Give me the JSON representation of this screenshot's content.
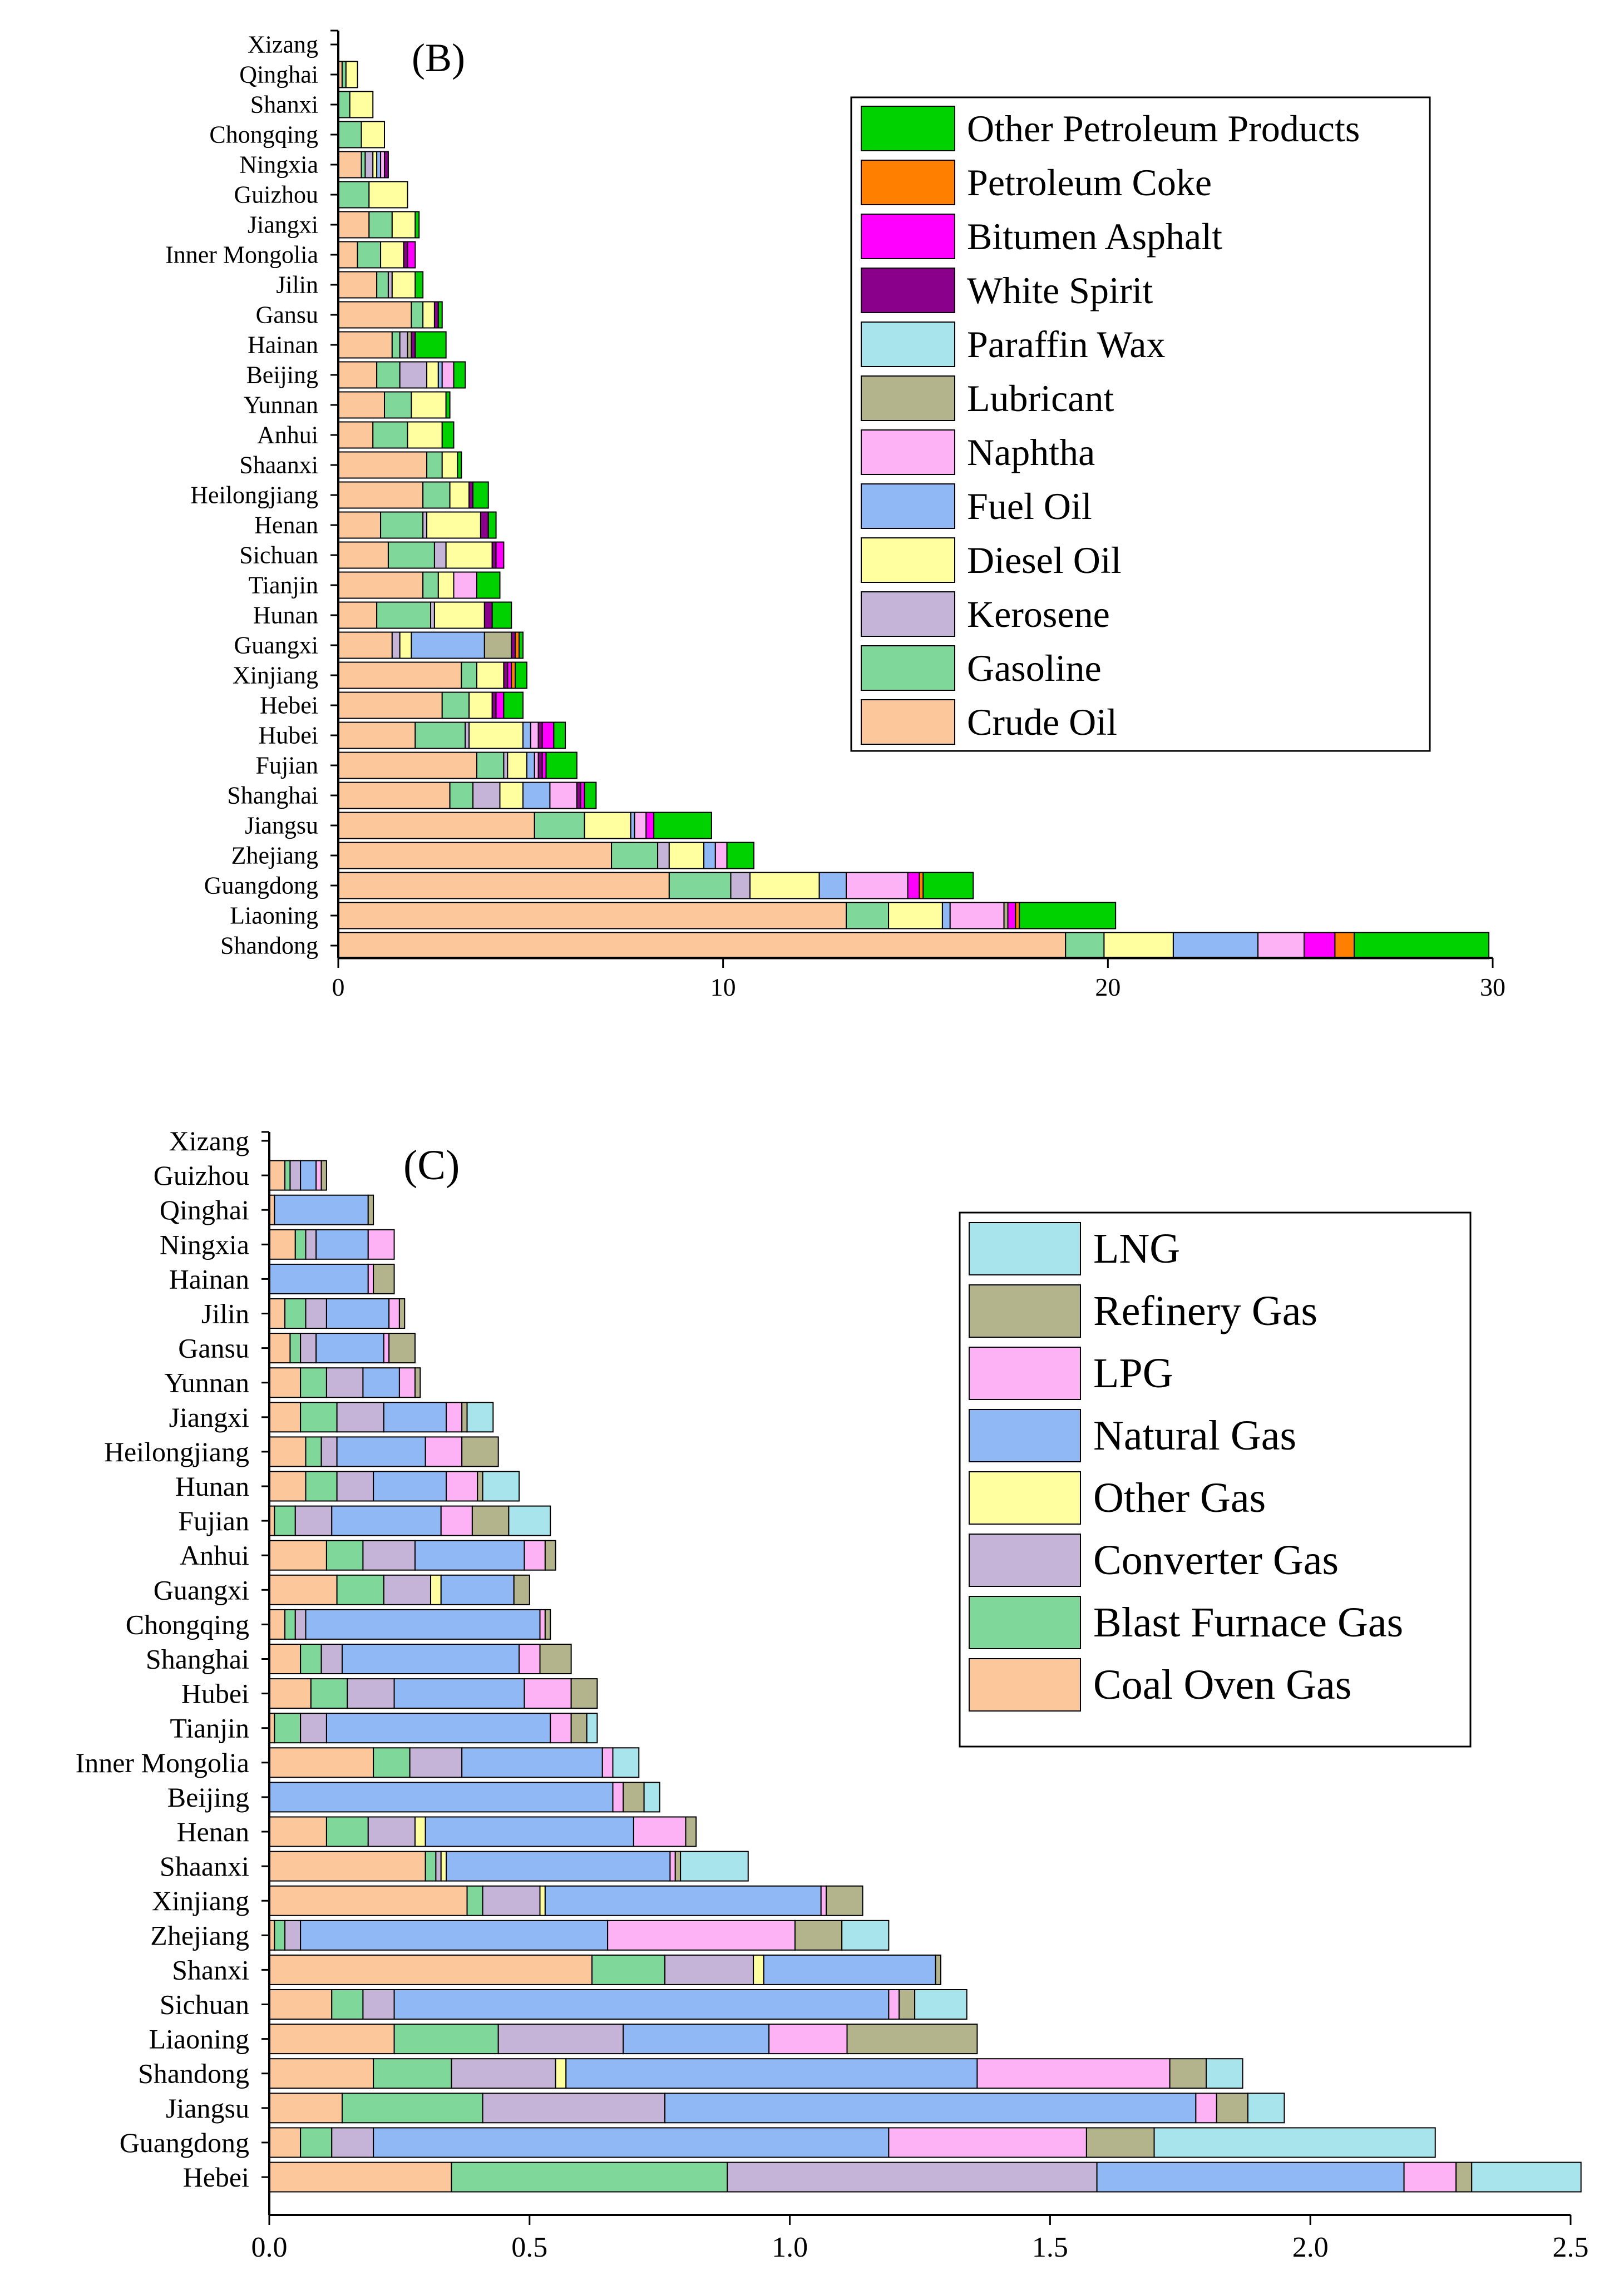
{
  "colors": {
    "crude_oil": "#FCC89B",
    "gasoline": "#7FD89A",
    "kerosene": "#C6B3D8",
    "diesel_oil": "#FFFFA0",
    "fuel_oil": "#8FB8F5",
    "naphtha": "#FDB2F5",
    "lubricant": "#B4B48C",
    "paraffin_wax": "#A8E4EC",
    "white_spirit": "#8B008B",
    "bitumen_asphalt": "#FF00FF",
    "petroleum_coke": "#FF8000",
    "other_petroleum_products": "#00D200",
    "coal_oven_gas": "#FCC89B",
    "blast_furnace_gas": "#7FD89A",
    "converter_gas": "#C6B3D8",
    "other_gas": "#FFFFA0",
    "natural_gas": "#8FB8F5",
    "lpg": "#FDB2F5",
    "refinery_gas": "#B4B48C",
    "lng": "#A8E4EC"
  },
  "chart_data": [
    {
      "type": "bar",
      "orientation": "horizontal",
      "stacked": true,
      "panel_label": "(B)",
      "title": "",
      "xlabel": "",
      "ylabel": "",
      "xlim": [
        0,
        30
      ],
      "xticks": [
        0,
        10,
        20,
        30
      ],
      "xtick_labels": [
        "0",
        "10",
        "20",
        "30"
      ],
      "legend_position": "top-right",
      "categories": [
        "Xizang",
        "Qinghai",
        "Shanxi",
        "Chongqing",
        "Ningxia",
        "Guizhou",
        "Jiangxi",
        "Inner Mongolia",
        "Jilin",
        "Gansu",
        "Hainan",
        "Beijing",
        "Yunnan",
        "Anhui",
        "Shaanxi",
        "Heilongjiang",
        "Henan",
        "Sichuan",
        "Tianjin",
        "Hunan",
        "Guangxi",
        "Xinjiang",
        "Hebei",
        "Hubei",
        "Fujian",
        "Shanghai",
        "Jiangsu",
        "Zhejiang",
        "Guangdong",
        "Liaoning",
        "Shandong"
      ],
      "series": [
        {
          "name": "Crude Oil",
          "color_key": "crude_oil",
          "values": [
            0,
            0.1,
            0,
            0,
            0.6,
            0,
            0.8,
            0.5,
            1.0,
            1.9,
            1.4,
            1.0,
            1.2,
            0.9,
            2.3,
            2.2,
            1.1,
            1.3,
            2.2,
            1.0,
            1.4,
            3.2,
            2.7,
            2.0,
            3.6,
            2.9,
            5.1,
            7.1,
            8.6,
            13.2,
            18.9
          ]
        },
        {
          "name": "Gasoline",
          "color_key": "gasoline",
          "values": [
            0,
            0.1,
            0.3,
            0.6,
            0.1,
            0.8,
            0.6,
            0.6,
            0.3,
            0.3,
            0.2,
            0.6,
            0.7,
            0.9,
            0.4,
            0.7,
            1.1,
            1.2,
            0.4,
            1.4,
            0,
            0.4,
            0.7,
            1.3,
            0.7,
            0.6,
            1.3,
            1.2,
            1.6,
            1.1,
            1.0
          ]
        },
        {
          "name": "Kerosene",
          "color_key": "kerosene",
          "values": [
            0,
            0,
            0,
            0,
            0.2,
            0,
            0,
            0,
            0.1,
            0,
            0.2,
            0.7,
            0,
            0,
            0,
            0,
            0.1,
            0.3,
            0,
            0.1,
            0.2,
            0,
            0,
            0.1,
            0.1,
            0.7,
            0,
            0.3,
            0.5,
            0,
            0
          ]
        },
        {
          "name": "Diesel Oil",
          "color_key": "diesel_oil",
          "values": [
            0,
            0.3,
            0.6,
            0.6,
            0.1,
            1.0,
            0.6,
            0.6,
            0.6,
            0.3,
            0,
            0.3,
            0.9,
            0.9,
            0.4,
            0.5,
            1.4,
            1.2,
            0.4,
            1.3,
            0.3,
            0.7,
            0.6,
            1.4,
            0.5,
            0.6,
            1.2,
            0.9,
            1.8,
            1.4,
            1.8
          ]
        },
        {
          "name": "Fuel Oil",
          "color_key": "fuel_oil",
          "values": [
            0,
            0,
            0,
            0,
            0.1,
            0,
            0,
            0,
            0,
            0,
            0,
            0.1,
            0,
            0,
            0,
            0,
            0,
            0,
            0,
            0,
            1.9,
            0,
            0,
            0.2,
            0.2,
            0.7,
            0.1,
            0.3,
            0.7,
            0.2,
            2.2
          ]
        },
        {
          "name": "Naphtha",
          "color_key": "naphtha",
          "values": [
            0,
            0,
            0,
            0,
            0.1,
            0,
            0,
            0,
            0,
            0,
            0,
            0.3,
            0,
            0,
            0,
            0,
            0,
            0,
            0.6,
            0,
            0,
            0,
            0,
            0.2,
            0.1,
            0.7,
            0.3,
            0.3,
            1.6,
            1.4,
            1.2
          ]
        },
        {
          "name": "Lubricant",
          "color_key": "lubricant",
          "values": [
            0,
            0,
            0,
            0,
            0,
            0,
            0,
            0,
            0,
            0,
            0.1,
            0,
            0,
            0,
            0,
            0,
            0,
            0,
            0,
            0,
            0.7,
            0,
            0,
            0,
            0,
            0,
            0,
            0,
            0,
            0.1,
            0
          ]
        },
        {
          "name": "Paraffin Wax",
          "color_key": "paraffin_wax",
          "values": [
            0,
            0,
            0,
            0,
            0,
            0,
            0,
            0,
            0,
            0,
            0,
            0,
            0,
            0,
            0,
            0,
            0,
            0,
            0,
            0,
            0,
            0,
            0,
            0,
            0,
            0,
            0,
            0,
            0,
            0,
            0
          ]
        },
        {
          "name": "White Spirit",
          "color_key": "white_spirit",
          "values": [
            0,
            0,
            0,
            0,
            0.1,
            0,
            0,
            0.1,
            0,
            0.1,
            0.1,
            0,
            0,
            0,
            0,
            0.1,
            0.2,
            0.1,
            0,
            0.2,
            0.1,
            0.1,
            0.1,
            0.1,
            0.1,
            0.1,
            0,
            0,
            0,
            0,
            0
          ]
        },
        {
          "name": "Bitumen Asphalt",
          "color_key": "bitumen_asphalt",
          "values": [
            0,
            0,
            0,
            0,
            0,
            0,
            0,
            0.2,
            0,
            0,
            0,
            0,
            0,
            0,
            0,
            0,
            0,
            0.2,
            0,
            0,
            0,
            0.1,
            0.2,
            0.3,
            0.1,
            0.1,
            0.2,
            0,
            0.3,
            0.2,
            0.8
          ]
        },
        {
          "name": "Petroleum Coke",
          "color_key": "petroleum_coke",
          "values": [
            0,
            0,
            0,
            0,
            0,
            0,
            0,
            0,
            0,
            0,
            0,
            0,
            0,
            0,
            0,
            0,
            0,
            0,
            0,
            0,
            0.1,
            0.1,
            0,
            0,
            0,
            0,
            0,
            0,
            0.1,
            0.1,
            0.5
          ]
        },
        {
          "name": "Other Petroleum Products",
          "color_key": "other_petroleum_products",
          "values": [
            0,
            0,
            0,
            0,
            0,
            0,
            0.1,
            0,
            0.2,
            0.1,
            0.8,
            0.3,
            0.1,
            0.3,
            0.1,
            0.4,
            0.2,
            0,
            0.6,
            0.5,
            0.1,
            0.3,
            0.5,
            0.3,
            0.8,
            0.3,
            1.5,
            0.7,
            1.3,
            2.5,
            3.5
          ]
        }
      ]
    },
    {
      "type": "bar",
      "orientation": "horizontal",
      "stacked": true,
      "panel_label": "(C)",
      "title": "",
      "xlabel": "",
      "ylabel": "",
      "xlim": [
        0,
        2.5
      ],
      "xticks": [
        0,
        0.5,
        1.0,
        1.5,
        2.0,
        2.5
      ],
      "xtick_labels": [
        "0.0",
        "0.5",
        "1.0",
        "1.5",
        "2.0",
        "2.5"
      ],
      "legend_position": "top-right",
      "categories": [
        "Xizang",
        "Guizhou",
        "Qinghai",
        "Ningxia",
        "Hainan",
        "Jilin",
        "Gansu",
        "Yunnan",
        "Jiangxi",
        "Heilongjiang",
        "Hunan",
        "Fujian",
        "Anhui",
        "Guangxi",
        "Chongqing",
        "Shanghai",
        "Hubei",
        "Tianjin",
        "Inner Mongolia",
        "Beijing",
        "Henan",
        "Shaanxi",
        "Xinjiang",
        "Zhejiang",
        "Shanxi",
        "Sichuan",
        "Liaoning",
        "Shandong",
        "Jiangsu",
        "Guangdong",
        "Hebei"
      ],
      "series": [
        {
          "name": "Coal Oven Gas",
          "color_key": "coal_oven_gas",
          "values": [
            0,
            0.03,
            0.01,
            0.05,
            0,
            0.03,
            0.04,
            0.06,
            0.06,
            0.07,
            0.07,
            0.01,
            0.11,
            0.13,
            0.03,
            0.06,
            0.08,
            0.01,
            0.2,
            0,
            0.11,
            0.3,
            0.38,
            0.01,
            0.62,
            0.12,
            0.24,
            0.2,
            0.14,
            0.06,
            0.35
          ]
        },
        {
          "name": "Blast Furnace Gas",
          "color_key": "blast_furnace_gas",
          "values": [
            0,
            0.01,
            0,
            0.02,
            0,
            0.04,
            0.02,
            0.05,
            0.07,
            0.03,
            0.06,
            0.04,
            0.07,
            0.09,
            0.02,
            0.04,
            0.07,
            0.05,
            0.07,
            0,
            0.08,
            0.02,
            0.03,
            0.02,
            0.14,
            0.06,
            0.2,
            0.15,
            0.27,
            0.06,
            0.53
          ]
        },
        {
          "name": "Converter Gas",
          "color_key": "converter_gas",
          "values": [
            0,
            0.02,
            0,
            0.02,
            0,
            0.04,
            0.03,
            0.07,
            0.09,
            0.03,
            0.07,
            0.07,
            0.1,
            0.09,
            0.02,
            0.04,
            0.09,
            0.05,
            0.1,
            0,
            0.09,
            0.01,
            0.11,
            0.03,
            0.17,
            0.06,
            0.24,
            0.2,
            0.35,
            0.08,
            0.71
          ]
        },
        {
          "name": "Other Gas",
          "color_key": "other_gas",
          "values": [
            0,
            0,
            0,
            0,
            0,
            0,
            0,
            0,
            0,
            0,
            0,
            0,
            0,
            0.02,
            0,
            0,
            0,
            0,
            0,
            0,
            0.02,
            0.01,
            0.01,
            0,
            0.02,
            0,
            0,
            0.02,
            0,
            0,
            0
          ]
        },
        {
          "name": "Natural Gas",
          "color_key": "natural_gas",
          "values": [
            0,
            0.03,
            0.18,
            0.1,
            0.19,
            0.12,
            0.13,
            0.07,
            0.12,
            0.17,
            0.14,
            0.21,
            0.21,
            0.14,
            0.45,
            0.34,
            0.25,
            0.43,
            0.27,
            0.66,
            0.4,
            0.43,
            0.53,
            0.59,
            0.33,
            0.95,
            0.28,
            0.79,
            1.02,
            0.99,
            0.59
          ]
        },
        {
          "name": "LPG",
          "color_key": "lpg",
          "values": [
            0,
            0.01,
            0,
            0.05,
            0.01,
            0.02,
            0.01,
            0.03,
            0.03,
            0.07,
            0.06,
            0.06,
            0.04,
            0,
            0.01,
            0.04,
            0.09,
            0.04,
            0.02,
            0.02,
            0.1,
            0.01,
            0.01,
            0.36,
            0,
            0.02,
            0.15,
            0.37,
            0.04,
            0.38,
            0.1
          ]
        },
        {
          "name": "Refinery Gas",
          "color_key": "refinery_gas",
          "values": [
            0,
            0.01,
            0.01,
            0,
            0.04,
            0.01,
            0.05,
            0.01,
            0.01,
            0.07,
            0.01,
            0.07,
            0.02,
            0.03,
            0.01,
            0.06,
            0.05,
            0.03,
            0,
            0.04,
            0.02,
            0.01,
            0.07,
            0.09,
            0.01,
            0.03,
            0.25,
            0.07,
            0.06,
            0.13,
            0.03
          ]
        },
        {
          "name": "LNG",
          "color_key": "lng",
          "values": [
            0,
            0,
            0,
            0,
            0,
            0,
            0,
            0,
            0.05,
            0,
            0.07,
            0.08,
            0,
            0,
            0,
            0,
            0,
            0.02,
            0.05,
            0.03,
            0,
            0.13,
            0,
            0.09,
            0,
            0.1,
            0,
            0.07,
            0.07,
            0.54,
            0.21
          ]
        }
      ]
    }
  ]
}
